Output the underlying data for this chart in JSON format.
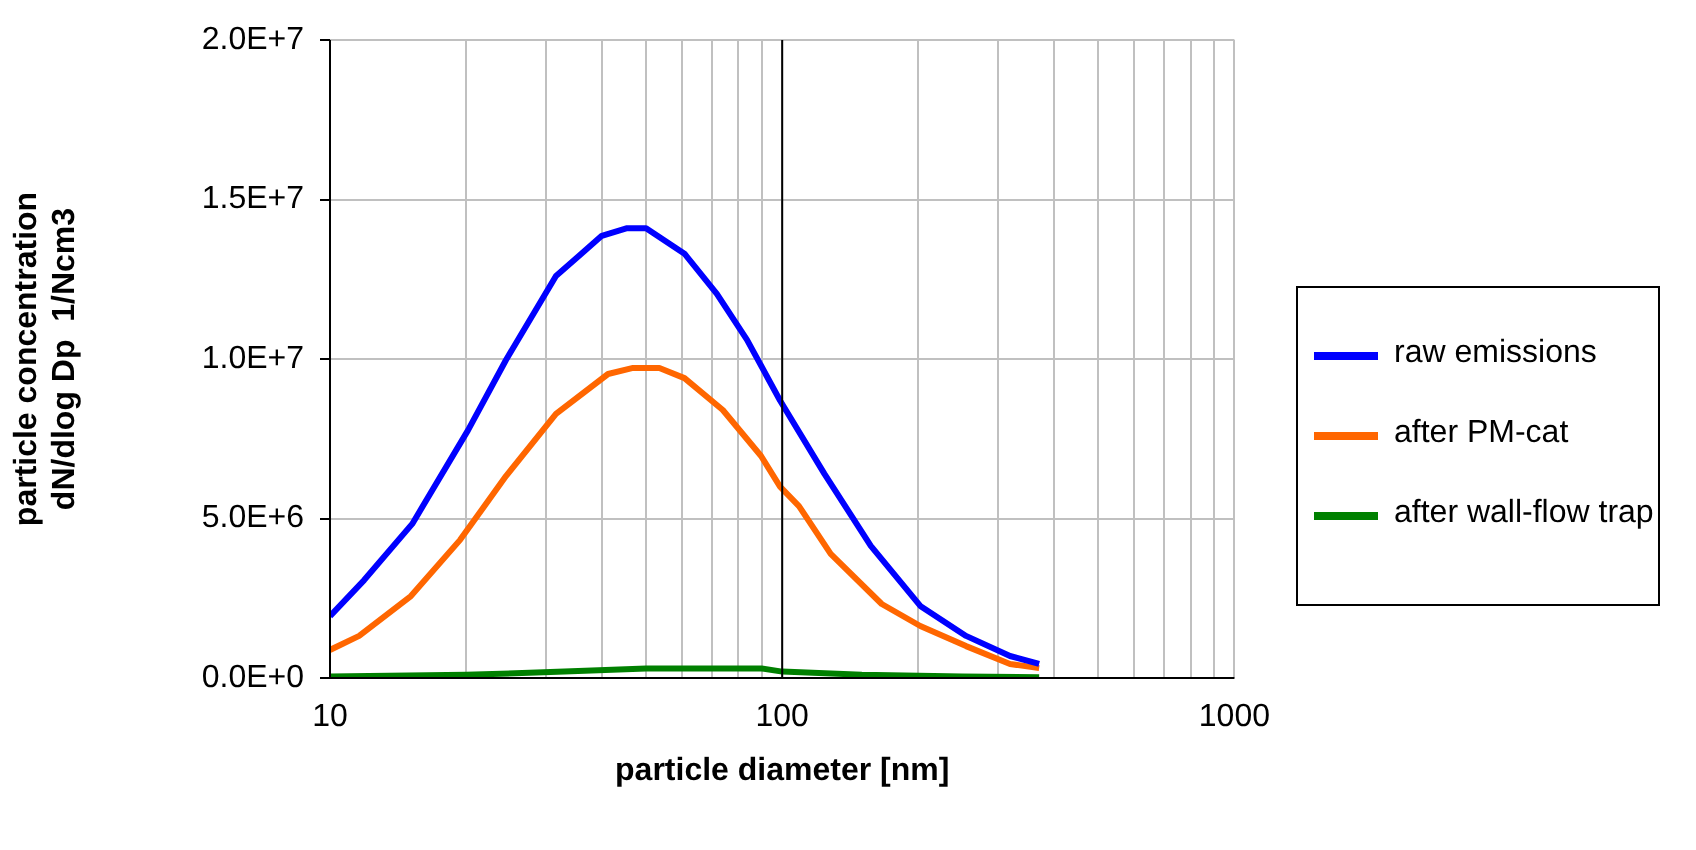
{
  "chart_data": {
    "type": "line",
    "xlabel": "particle diameter [nm]",
    "ylabel": "particle concentration\ndN/dlog Dp  1/Ncm3",
    "log": "x",
    "grid": true,
    "legend": "right",
    "marker": "none",
    "line_style": "solid",
    "xlim": [
      10,
      1000
    ],
    "xticks": [
      10,
      {
        "value": 20,
        "label": null
      },
      {
        "value": 30,
        "label": null
      },
      {
        "value": 40,
        "label": null
      },
      {
        "value": 50,
        "label": null
      },
      {
        "value": 60,
        "label": null
      },
      {
        "value": 70,
        "label": null
      },
      {
        "value": 80,
        "label": null
      },
      {
        "value": 90,
        "label": null
      },
      100,
      {
        "value": 200,
        "label": null
      },
      {
        "value": 300,
        "label": null
      },
      {
        "value": 400,
        "label": null
      },
      {
        "value": 500,
        "label": null
      },
      {
        "value": 600,
        "label": null
      },
      {
        "value": 700,
        "label": null
      },
      {
        "value": 800,
        "label": null
      },
      {
        "value": 900,
        "label": null
      },
      1000
    ],
    "ylim": [
      0,
      20000000
    ],
    "yticks": [
      {
        "value": 0,
        "label": "0.0E+0"
      },
      {
        "value": 5000000,
        "label": "5.0E+6"
      },
      {
        "value": 10000000,
        "label": "1.0E+7"
      },
      {
        "value": 15000000,
        "label": "1.5E+7"
      },
      {
        "value": 20000000,
        "label": "2.0E+7"
      }
    ],
    "ref_lines": [
      {
        "axis": "x",
        "value": 100,
        "color": "#000000"
      }
    ],
    "series": [
      {
        "name": "raw emissions",
        "color": "#0000ff",
        "x": [
          10,
          11.9,
          15.2,
          20.2,
          24.5,
          31.6,
          39.9,
          45.4,
          50,
          60.8,
          71.7,
          83.6,
          98.9,
          124,
          157,
          202,
          255,
          319,
          370
        ],
        "values": [
          1940000,
          3070000,
          4830000,
          7770000,
          9970000,
          12600000,
          13860000,
          14100000,
          14100000,
          13300000,
          12040000,
          10600000,
          8700000,
          6400000,
          4140000,
          2260000,
          1320000,
          690000,
          440000
        ]
      },
      {
        "name": "after PM-cat",
        "color": "#ff6600",
        "x": [
          10,
          11.6,
          15.1,
          19.4,
          24.5,
          31.6,
          41.2,
          46.8,
          53.5,
          60.8,
          73.9,
          89.8,
          98.9,
          108.9,
          128,
          166,
          202,
          255,
          319,
          370
        ],
        "values": [
          880000,
          1320000,
          2570000,
          4330000,
          6330000,
          8280000,
          9530000,
          9720000,
          9720000,
          9400000,
          8400000,
          6960000,
          6000000,
          5390000,
          3890000,
          2320000,
          1630000,
          1000000,
          440000,
          310000
        ]
      },
      {
        "name": "after wall-flow trap",
        "color": "#008000",
        "x": [
          10,
          20,
          33,
          50,
          90,
          100,
          150,
          250,
          370
        ],
        "values": [
          50000,
          100000,
          200000,
          300000,
          300000,
          200000,
          100000,
          50000,
          20000
        ]
      }
    ]
  }
}
